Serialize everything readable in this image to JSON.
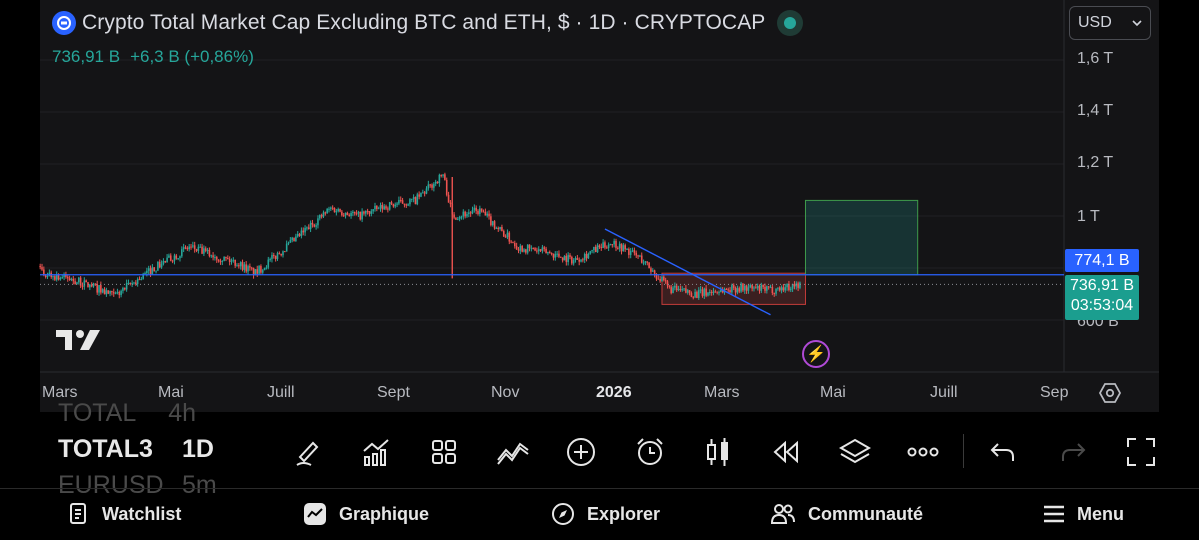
{
  "chart": {
    "title": "Crypto Total Market Cap Excluding BTC and ETH, $ · 1D · CRYPTOCAP",
    "last_value": "736,91 B",
    "change": "+6,3 B (+0,86%)",
    "currency": "USD",
    "price_axis": [
      "1,6 T",
      "1,4 T",
      "1,2 T",
      "1 T",
      "600 B"
    ],
    "level_badge": "774,1 B",
    "last_price_badge": "736,91 B",
    "countdown": "03:53:04",
    "time_axis": [
      "Mars",
      "Mai",
      "Juill",
      "Sept",
      "Nov",
      "2026",
      "Mars",
      "Mai",
      "Juill",
      "Sep"
    ],
    "colors": {
      "up": "#26a69a",
      "down": "#ef5350",
      "level_line": "#2962ff",
      "accent": "#2962ff"
    }
  },
  "chart_data": {
    "type": "candlestick",
    "title": "Crypto Total Market Cap Excluding BTC and ETH, $ · 1D · CRYPTOCAP",
    "x_range": [
      "2025-03",
      "2026-09"
    ],
    "ylim": [
      450,
      1750
    ],
    "y_unit": "B USD",
    "close_path": [
      {
        "date": "2025-03-01",
        "value": 780
      },
      {
        "date": "2025-03-15",
        "value": 760
      },
      {
        "date": "2025-04-01",
        "value": 720
      },
      {
        "date": "2025-04-09",
        "value": 690
      },
      {
        "date": "2025-05-01",
        "value": 800
      },
      {
        "date": "2025-05-20",
        "value": 880
      },
      {
        "date": "2025-06-15",
        "value": 820
      },
      {
        "date": "2025-06-25",
        "value": 780
      },
      {
        "date": "2025-07-15",
        "value": 900
      },
      {
        "date": "2025-08-05",
        "value": 1030
      },
      {
        "date": "2025-08-20",
        "value": 1000
      },
      {
        "date": "2025-09-05",
        "value": 1040
      },
      {
        "date": "2025-09-20",
        "value": 1060
      },
      {
        "date": "2025-10-05",
        "value": 1160
      },
      {
        "date": "2025-10-10",
        "value": 1000
      },
      {
        "date": "2025-10-25",
        "value": 1020
      },
      {
        "date": "2025-11-15",
        "value": 880
      },
      {
        "date": "2025-12-01",
        "value": 860
      },
      {
        "date": "2025-12-15",
        "value": 830
      },
      {
        "date": "2026-01-05",
        "value": 900
      },
      {
        "date": "2026-01-20",
        "value": 840
      },
      {
        "date": "2026-02-05",
        "value": 720
      },
      {
        "date": "2026-02-20",
        "value": 700
      },
      {
        "date": "2026-03-15",
        "value": 725
      },
      {
        "date": "2026-04-01",
        "value": 715
      },
      {
        "date": "2026-04-17",
        "value": 737
      }
    ],
    "horizontal_level": 774.1,
    "last_price": 736.91,
    "annotations": [
      {
        "type": "trendline",
        "from": {
          "date": "2026-01-01",
          "value": 950
        },
        "to": {
          "date": "2026-04-01",
          "value": 620
        },
        "color": "#2962ff"
      },
      {
        "type": "range-box",
        "from": "2026-02-01",
        "to": "2026-04-20",
        "low": 660,
        "high": 780,
        "color": "#ef5350"
      },
      {
        "type": "target-box",
        "from": "2026-04-20",
        "to": "2026-06-20",
        "low": 774.1,
        "high": 1060,
        "color": "#26a69a"
      }
    ]
  },
  "symbols": [
    {
      "name": "TOTAL",
      "tf": "4h",
      "state": "faded"
    },
    {
      "name": "TOTAL3",
      "tf": "1D",
      "state": "active"
    },
    {
      "name": "EURUSD",
      "tf": "5m",
      "state": "faded"
    }
  ],
  "toolbar": [
    "draw-brush-icon",
    "indicators-icon",
    "layouts-grid-icon",
    "compare-icon",
    "add-icon",
    "alert-clock-icon",
    "candles-icon",
    "replay-icon",
    "layers-icon",
    "more-icon",
    "undo-icon",
    "redo-icon",
    "fullscreen-icon"
  ],
  "nav": {
    "watchlist": "Watchlist",
    "chart": "Graphique",
    "explore": "Explorer",
    "community": "Communauté",
    "menu": "Menu"
  }
}
